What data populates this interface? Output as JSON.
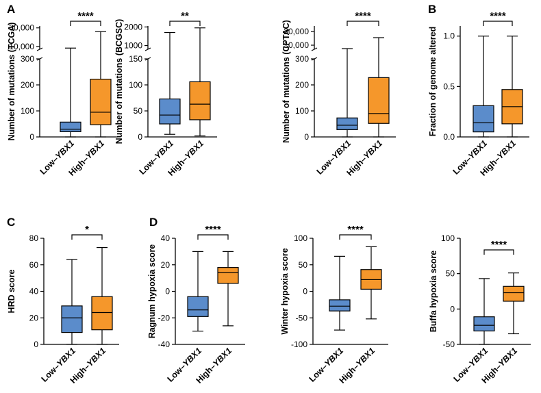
{
  "panel_letters": [
    "A",
    "B",
    "C",
    "D"
  ],
  "chart_data": [
    {
      "type": "box",
      "panel": "A",
      "ylabel": "Number of mutations (TCGA)",
      "categories": [
        "Low–YBX1",
        "High–YBX1"
      ],
      "category_prefix": [
        "Low–",
        "High–"
      ],
      "category_gene": "YBX1",
      "broken_axis": true,
      "lower_range": [
        0,
        300
      ],
      "upper_range": [
        7000,
        32000
      ],
      "y_ticks_lower": [
        "0",
        "100",
        "200",
        "300"
      ],
      "y_ticks_upper": [
        "10,000",
        "30,000"
      ],
      "colors": [
        "#5b8ccb",
        "#f5972b"
      ],
      "boxes": [
        {
          "min": 0,
          "q1": 20,
          "median": 30,
          "q3": 57,
          "max": 8300
        },
        {
          "min": 0,
          "q1": 47,
          "median": 95,
          "q3": 222,
          "max": 26000
        }
      ],
      "significance": "****"
    },
    {
      "type": "box",
      "panel": "",
      "ylabel": "Number of mutations (BCGSC)",
      "categories": [
        "Low–YBX1",
        "High–YBX1"
      ],
      "category_prefix": [
        "Low–",
        "High–"
      ],
      "category_gene": "YBX1",
      "broken_axis": true,
      "lower_range": [
        0,
        150
      ],
      "upper_range": [
        800,
        2050
      ],
      "y_ticks_lower": [
        "0",
        "50",
        "100",
        "150"
      ],
      "y_ticks_upper": [
        "1000",
        "2000"
      ],
      "colors": [
        "#5b8ccb",
        "#f5972b"
      ],
      "boxes": [
        {
          "min": 5,
          "q1": 25,
          "median": 42,
          "q3": 73,
          "max": 1700
        },
        {
          "min": 2,
          "q1": 33,
          "median": 63,
          "q3": 106,
          "max": 1950
        }
      ],
      "significance": "**"
    },
    {
      "type": "box",
      "panel": "",
      "ylabel": "Number of mutations (CPTAC)",
      "categories": [
        "Low–YBX1",
        "High–YBX1"
      ],
      "category_prefix": [
        "Low–",
        "High–"
      ],
      "category_gene": "YBX1",
      "broken_axis": true,
      "lower_range": [
        0,
        300
      ],
      "upper_range": [
        7000,
        24000
      ],
      "y_ticks_lower": [
        "0",
        "100",
        "200",
        "300"
      ],
      "y_ticks_upper": [
        "10,000",
        "20,000"
      ],
      "colors": [
        "#5b8ccb",
        "#f5972b"
      ],
      "boxes": [
        {
          "min": 0,
          "q1": 28,
          "median": 45,
          "q3": 73,
          "max": 7500
        },
        {
          "min": 0,
          "q1": 52,
          "median": 90,
          "q3": 228,
          "max": 15500
        }
      ],
      "significance": "****"
    },
    {
      "type": "box",
      "panel": "B",
      "ylabel": "Fraction of genome altered",
      "categories": [
        "Low–YBX1",
        "High–YBX1"
      ],
      "category_prefix": [
        "Low–",
        "High–"
      ],
      "category_gene": "YBX1",
      "ylim": [
        0,
        1.1
      ],
      "y_ticks": [
        0,
        0.5,
        1.0
      ],
      "y_tick_labels": [
        "0.0",
        "0.5",
        "1.0"
      ],
      "colors": [
        "#5b8ccb",
        "#f5972b"
      ],
      "boxes": [
        {
          "min": 0,
          "q1": 0.05,
          "median": 0.14,
          "q3": 0.31,
          "max": 1.0
        },
        {
          "min": 0,
          "q1": 0.13,
          "median": 0.3,
          "q3": 0.47,
          "max": 1.0
        }
      ],
      "significance": "****"
    },
    {
      "type": "box",
      "panel": "C",
      "ylabel": "HRD score",
      "categories": [
        "Low–YBX1",
        "High–YBX1"
      ],
      "category_prefix": [
        "Low–",
        "High–"
      ],
      "category_gene": "YBX1",
      "ylim": [
        0,
        80
      ],
      "y_ticks": [
        0,
        20,
        40,
        60,
        80
      ],
      "y_tick_labels": [
        "0",
        "20",
        "40",
        "60",
        "80"
      ],
      "colors": [
        "#5b8ccb",
        "#f5972b"
      ],
      "boxes": [
        {
          "min": 0,
          "q1": 9,
          "median": 20,
          "q3": 29,
          "max": 64
        },
        {
          "min": 0,
          "q1": 11,
          "median": 24,
          "q3": 36,
          "max": 73
        }
      ],
      "significance": "*"
    },
    {
      "type": "box",
      "panel": "D",
      "ylabel": "Ragnum hypoxia score",
      "categories": [
        "Low–YBX1",
        "High–YBX1"
      ],
      "category_prefix": [
        "Low–",
        "High–"
      ],
      "category_gene": "YBX1",
      "ylim": [
        -40,
        40
      ],
      "y_ticks": [
        -40,
        -20,
        0,
        20,
        40
      ],
      "y_tick_labels": [
        "-40",
        "-20",
        "0",
        "20",
        "40"
      ],
      "colors": [
        "#5b8ccb",
        "#f5972b"
      ],
      "boxes": [
        {
          "min": -30,
          "q1": -19,
          "median": -14,
          "q3": -4,
          "max": 30
        },
        {
          "min": -26,
          "q1": 6,
          "median": 14,
          "q3": 18,
          "max": 30
        }
      ],
      "significance": "****"
    },
    {
      "type": "box",
      "panel": "",
      "ylabel": "Winter hypoxia score",
      "categories": [
        "Low–YBX1",
        "High–YBX1"
      ],
      "category_prefix": [
        "Low–",
        "High–"
      ],
      "category_gene": "YBX1",
      "ylim": [
        -100,
        100
      ],
      "y_ticks": [
        -100,
        -50,
        0,
        50,
        100
      ],
      "y_tick_labels": [
        "-100",
        "-50",
        "0",
        "50",
        "100"
      ],
      "colors": [
        "#5b8ccb",
        "#f5972b"
      ],
      "boxes": [
        {
          "min": -73,
          "q1": -37,
          "median": -28,
          "q3": -16,
          "max": 66
        },
        {
          "min": -52,
          "q1": 4,
          "median": 22,
          "q3": 41,
          "max": 84
        }
      ],
      "significance": "****"
    },
    {
      "type": "box",
      "panel": "",
      "ylabel": "Buffa hypoxia score",
      "categories": [
        "Low–YBX1",
        "High–YBX1"
      ],
      "category_prefix": [
        "Low–",
        "High–"
      ],
      "category_gene": "YBX1",
      "ylim": [
        -50,
        100
      ],
      "y_ticks": [
        -50,
        0,
        50,
        100
      ],
      "y_tick_labels": [
        "-50",
        "0",
        "50",
        "100"
      ],
      "colors": [
        "#5b8ccb",
        "#f5972b"
      ],
      "boxes": [
        {
          "min": -50,
          "q1": -31,
          "median": -23,
          "q3": -11,
          "max": 43
        },
        {
          "min": -35,
          "q1": 11,
          "median": 23,
          "q3": 32,
          "max": 51
        }
      ],
      "significance": "****"
    }
  ]
}
